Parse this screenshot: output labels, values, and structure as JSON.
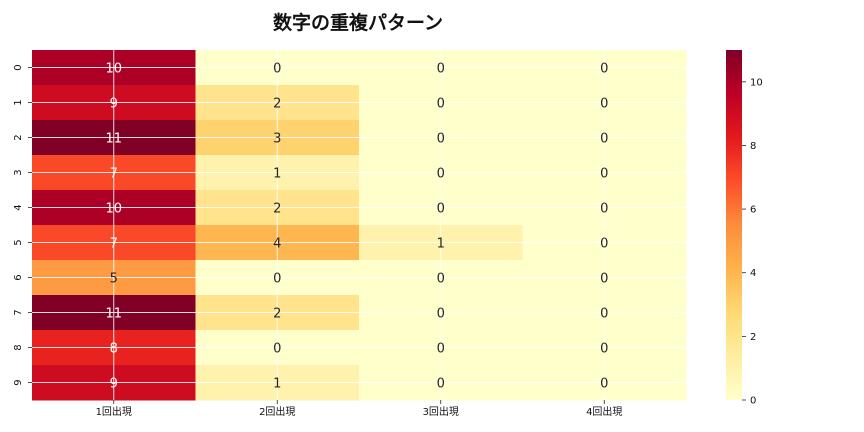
{
  "chart_data": {
    "type": "heatmap",
    "title": "数字の重複パターン",
    "xlabel": "",
    "ylabel": "",
    "columns": [
      "1回出現",
      "2回出現",
      "3回出現",
      "4回出現"
    ],
    "rows": [
      "0",
      "1",
      "2",
      "3",
      "4",
      "5",
      "6",
      "7",
      "8",
      "9"
    ],
    "values": [
      [
        10,
        0,
        0,
        0
      ],
      [
        9,
        2,
        0,
        0
      ],
      [
        11,
        3,
        0,
        0
      ],
      [
        7,
        1,
        0,
        0
      ],
      [
        10,
        2,
        0,
        0
      ],
      [
        7,
        4,
        1,
        0
      ],
      [
        5,
        0,
        0,
        0
      ],
      [
        11,
        2,
        0,
        0
      ],
      [
        8,
        0,
        0,
        0
      ],
      [
        9,
        1,
        0,
        0
      ]
    ],
    "colorbar": {
      "min": 0,
      "max": 11,
      "ticks": [
        "0",
        "2",
        "4",
        "6",
        "8",
        "10"
      ],
      "colormap": "YlOrRd"
    },
    "grid": true
  }
}
